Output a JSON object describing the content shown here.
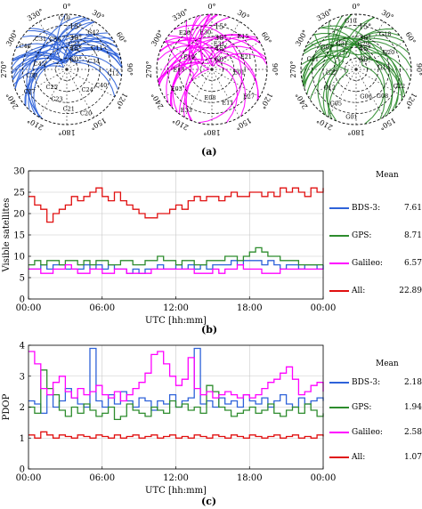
{
  "colors": {
    "bds3": "#2e62d9",
    "gps": "#2d8c2d",
    "galileo": "#ff00ff",
    "all": "#e01010",
    "grid": "#c8c8c8"
  },
  "panel_labels": {
    "a": "(a)",
    "b": "(b)",
    "c": "(c)"
  },
  "skyplots": {
    "azimuth_labels": [
      "0°",
      "30°",
      "60°",
      "90°",
      "120°",
      "150°",
      "180°",
      "210°",
      "240°",
      "270°",
      "300°",
      "330°"
    ],
    "elevation_labels": [
      "15°",
      "30°",
      "45°",
      "60°"
    ],
    "plots": [
      {
        "system": "bds3",
        "satellites": [
          "C22",
          "C42",
          "C11",
          "C34",
          "C12",
          "C40",
          "C24",
          "C20",
          "C21",
          "C23",
          "C25",
          "C27",
          "C33",
          "C45",
          "C46",
          "C31",
          "C36",
          "C19"
        ]
      },
      {
        "system": "galileo",
        "satellites": [
          "E31",
          "E15",
          "E21",
          "E01",
          "E27",
          "E11",
          "E08",
          "E33",
          "E03",
          "E13",
          "E19",
          "E20",
          "E30"
        ]
      },
      {
        "system": "gps",
        "satellites": [
          "G29",
          "G18",
          "G20",
          "G13",
          "G22",
          "G08",
          "G06",
          "G01",
          "G05",
          "G12",
          "G27",
          "G21",
          "G07",
          "G31",
          "G10"
        ]
      }
    ]
  },
  "chart_data": [
    {
      "type": "line",
      "xlabel": "UTC [hh:mm]",
      "ylabel": "Visible satellites",
      "xticks": [
        "00:00",
        "06:00",
        "12:00",
        "18:00",
        "00:00"
      ],
      "x_hours_range": [
        0,
        24
      ],
      "ylim": [
        0,
        30
      ],
      "yticks": [
        0,
        5,
        10,
        15,
        20,
        25,
        30
      ],
      "grid": true,
      "legend_title": "Mean",
      "legend_position": "right",
      "x_hours": [
        0,
        0.5,
        1,
        1.5,
        2,
        2.5,
        3,
        3.5,
        4,
        4.5,
        5,
        5.5,
        6,
        6.5,
        7,
        7.5,
        8,
        8.5,
        9,
        9.5,
        10,
        10.5,
        11,
        11.5,
        12,
        12.5,
        13,
        13.5,
        14,
        14.5,
        15,
        15.5,
        16,
        16.5,
        17,
        17.5,
        18,
        18.5,
        19,
        19.5,
        20,
        20.5,
        21,
        21.5,
        22,
        22.5,
        23,
        23.5,
        24
      ],
      "series": [
        {
          "name": "BDS-3:",
          "key": "bds3",
          "mean": "7.61",
          "values": [
            7,
            7,
            8,
            7,
            8,
            8,
            7,
            7,
            7,
            8,
            7,
            8,
            7,
            8,
            7,
            7,
            6,
            7,
            6,
            7,
            7,
            8,
            7,
            7,
            8,
            7,
            8,
            7,
            8,
            7,
            8,
            8,
            8,
            9,
            8,
            9,
            9,
            9,
            8,
            9,
            8,
            7,
            8,
            8,
            7,
            8,
            8,
            7,
            8
          ]
        },
        {
          "name": "GPS:",
          "key": "gps",
          "mean": "8.71",
          "values": [
            8,
            9,
            8,
            9,
            9,
            8,
            9,
            9,
            8,
            9,
            8,
            9,
            9,
            8,
            8,
            9,
            9,
            8,
            8,
            9,
            9,
            10,
            9,
            9,
            8,
            9,
            9,
            8,
            8,
            9,
            9,
            9,
            10,
            10,
            9,
            10,
            11,
            12,
            11,
            10,
            10,
            9,
            9,
            9,
            8,
            8,
            8,
            8,
            8
          ]
        },
        {
          "name": "Galileo:",
          "key": "galileo",
          "mean": "6.57",
          "values": [
            7,
            7,
            6,
            6,
            7,
            7,
            8,
            7,
            6,
            6,
            7,
            7,
            6,
            6,
            7,
            7,
            6,
            6,
            6,
            6,
            7,
            7,
            7,
            7,
            7,
            7,
            7,
            6,
            6,
            6,
            7,
            6,
            7,
            7,
            8,
            7,
            7,
            7,
            6,
            6,
            6,
            7,
            7,
            7,
            7,
            7,
            7,
            7,
            7
          ]
        },
        {
          "name": "All:",
          "key": "all",
          "mean": "22.89",
          "values": [
            24,
            22,
            21,
            18,
            20,
            21,
            22,
            24,
            23,
            24,
            25,
            26,
            24,
            23,
            25,
            23,
            22,
            21,
            20,
            19,
            19,
            20,
            20,
            21,
            22,
            21,
            23,
            24,
            23,
            24,
            24,
            23,
            24,
            25,
            24,
            24,
            25,
            25,
            24,
            25,
            24,
            26,
            25,
            26,
            25,
            24,
            26,
            25,
            26
          ]
        }
      ]
    },
    {
      "type": "line",
      "xlabel": "UTC [hh:mm]",
      "ylabel": "PDOP",
      "xticks": [
        "00:00",
        "06:00",
        "12:00",
        "18:00",
        "00:00"
      ],
      "x_hours_range": [
        0,
        24
      ],
      "ylim": [
        0,
        4
      ],
      "yticks": [
        0,
        1,
        2,
        3,
        4
      ],
      "grid": true,
      "legend_title": "Mean",
      "legend_position": "right",
      "x_hours": [
        0,
        0.5,
        1,
        1.5,
        2,
        2.5,
        3,
        3.5,
        4,
        4.5,
        5,
        5.5,
        6,
        6.5,
        7,
        7.5,
        8,
        8.5,
        9,
        9.5,
        10,
        10.5,
        11,
        11.5,
        12,
        12.5,
        13,
        13.5,
        14,
        14.5,
        15,
        15.5,
        16,
        16.5,
        17,
        17.5,
        18,
        18.5,
        19,
        19.5,
        20,
        20.5,
        21,
        21.5,
        22,
        22.5,
        23,
        23.5,
        24
      ],
      "series": [
        {
          "name": "BDS-3:",
          "key": "bds3",
          "mean": "2.18",
          "values": [
            2.2,
            2.1,
            1.8,
            2.4,
            2.0,
            2.2,
            2.6,
            2.3,
            2.1,
            2.0,
            3.9,
            2.2,
            2.0,
            2.4,
            2.1,
            2.5,
            2.2,
            2.0,
            2.3,
            2.2,
            1.9,
            2.2,
            2.1,
            2.4,
            2.0,
            2.2,
            2.3,
            3.9,
            2.1,
            2.2,
            2.0,
            2.3,
            2.1,
            2.2,
            2.0,
            2.4,
            2.2,
            2.1,
            2.3,
            2.0,
            2.2,
            2.4,
            2.1,
            2.0,
            2.3,
            2.1,
            2.2,
            2.3,
            2.2
          ]
        },
        {
          "name": "GPS:",
          "key": "gps",
          "mean": "1.94",
          "values": [
            2.0,
            1.8,
            3.2,
            2.6,
            2.4,
            1.9,
            1.7,
            2.0,
            1.8,
            2.1,
            1.9,
            1.7,
            1.8,
            2.0,
            1.6,
            1.7,
            2.1,
            1.9,
            1.8,
            1.7,
            2.0,
            1.9,
            1.8,
            2.2,
            2.0,
            2.1,
            1.9,
            2.0,
            1.8,
            2.7,
            2.5,
            2.0,
            1.9,
            1.7,
            1.8,
            1.9,
            2.0,
            1.8,
            1.9,
            2.1,
            1.8,
            1.7,
            1.9,
            2.0,
            1.8,
            2.1,
            1.9,
            1.7,
            1.8
          ]
        },
        {
          "name": "Galileo:",
          "key": "galileo",
          "mean": "2.58",
          "values": [
            3.8,
            3.4,
            2.6,
            2.4,
            2.8,
            3.0,
            2.5,
            2.3,
            2.6,
            2.4,
            2.5,
            2.7,
            2.4,
            2.3,
            2.5,
            2.2,
            2.4,
            2.6,
            2.8,
            3.1,
            3.7,
            3.8,
            3.4,
            3.0,
            2.7,
            2.9,
            3.6,
            2.6,
            2.4,
            2.5,
            2.3,
            2.4,
            2.5,
            2.4,
            2.3,
            2.4,
            2.3,
            2.4,
            2.6,
            2.8,
            2.9,
            3.1,
            3.3,
            2.9,
            2.4,
            2.5,
            2.7,
            2.8,
            2.5
          ]
        },
        {
          "name": "All:",
          "key": "all",
          "mean": "1.07",
          "values": [
            1.1,
            1.0,
            1.2,
            1.1,
            1.0,
            1.1,
            1.05,
            1.0,
            1.1,
            1.05,
            1.0,
            1.1,
            1.05,
            1.0,
            1.1,
            1.0,
            1.05,
            1.1,
            1.0,
            1.05,
            1.1,
            1.0,
            1.05,
            1.1,
            1.0,
            1.05,
            1.0,
            1.1,
            1.05,
            1.0,
            1.1,
            1.05,
            1.0,
            1.1,
            1.05,
            1.0,
            1.1,
            1.05,
            1.0,
            1.05,
            1.1,
            1.0,
            1.05,
            1.1,
            1.0,
            1.05,
            1.0,
            1.1,
            1.05
          ]
        }
      ]
    }
  ]
}
